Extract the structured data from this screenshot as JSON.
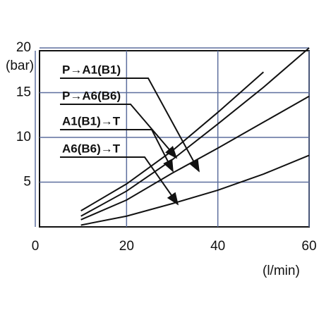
{
  "chart_data": {
    "type": "line",
    "y_label": "(bar)",
    "x_label": "(l/min)",
    "xlim": [
      0,
      60
    ],
    "xticks": [
      0,
      20,
      40,
      60
    ],
    "ylim": [
      0,
      20
    ],
    "yticks": [
      5,
      10,
      15,
      20
    ],
    "grid": true,
    "grid_color": "#5d6f9e",
    "line_color": "#111111",
    "x": [
      10,
      20,
      30,
      40,
      50,
      60
    ],
    "series": [
      {
        "name": "P→A1(B1)",
        "values": [
          1.8,
          4.8,
          8.5,
          12.8,
          17.3,
          null
        ]
      },
      {
        "name": "P→A6(B6)",
        "values": [
          1.2,
          4.0,
          7.5,
          11.5,
          15.6,
          20.0
        ]
      },
      {
        "name": "A1(B1)→T",
        "values": [
          0.8,
          3.0,
          6.0,
          8.8,
          11.7,
          14.6
        ]
      },
      {
        "name": "A6(B6)→T",
        "values": [
          0.2,
          1.2,
          2.6,
          4.1,
          5.9,
          8.0
        ]
      }
    ]
  }
}
